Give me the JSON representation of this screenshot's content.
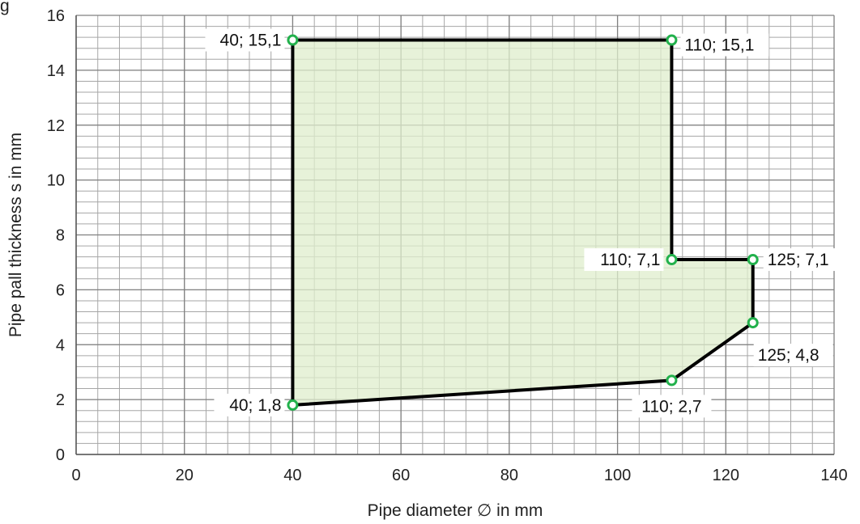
{
  "figure": {
    "corner_text": "g"
  },
  "colors": {
    "fill": "#dfedcc",
    "outline": "#000000",
    "marker_stroke": "#22b14c",
    "grid": "#a6a6a6"
  },
  "chart_data": {
    "type": "area",
    "xlabel": "Pipe diameter ∅ in mm",
    "ylabel": "Pipe pall thickness s in mm",
    "xlim": [
      0,
      140
    ],
    "ylim": [
      0,
      16
    ],
    "xticks": [
      0,
      20,
      40,
      60,
      80,
      100,
      120,
      140
    ],
    "yticks": [
      0,
      2,
      4,
      6,
      8,
      10,
      12,
      14,
      16
    ],
    "minor_grid_x_step": 4,
    "minor_grid_y_step": 0.4,
    "grid": true,
    "polygon": [
      {
        "x": 40,
        "y": 1.8,
        "label": "40; 1,8"
      },
      {
        "x": 110,
        "y": 2.7,
        "label": "110; 2,7"
      },
      {
        "x": 125,
        "y": 4.8,
        "label": "125; 4,8"
      },
      {
        "x": 125,
        "y": 7.1,
        "label": "125; 7,1"
      },
      {
        "x": 110,
        "y": 7.1,
        "label": "110; 7,1"
      },
      {
        "x": 110,
        "y": 15.1,
        "label": "110; 15,1"
      },
      {
        "x": 40,
        "y": 15.1,
        "label": "40; 15,1"
      }
    ]
  }
}
